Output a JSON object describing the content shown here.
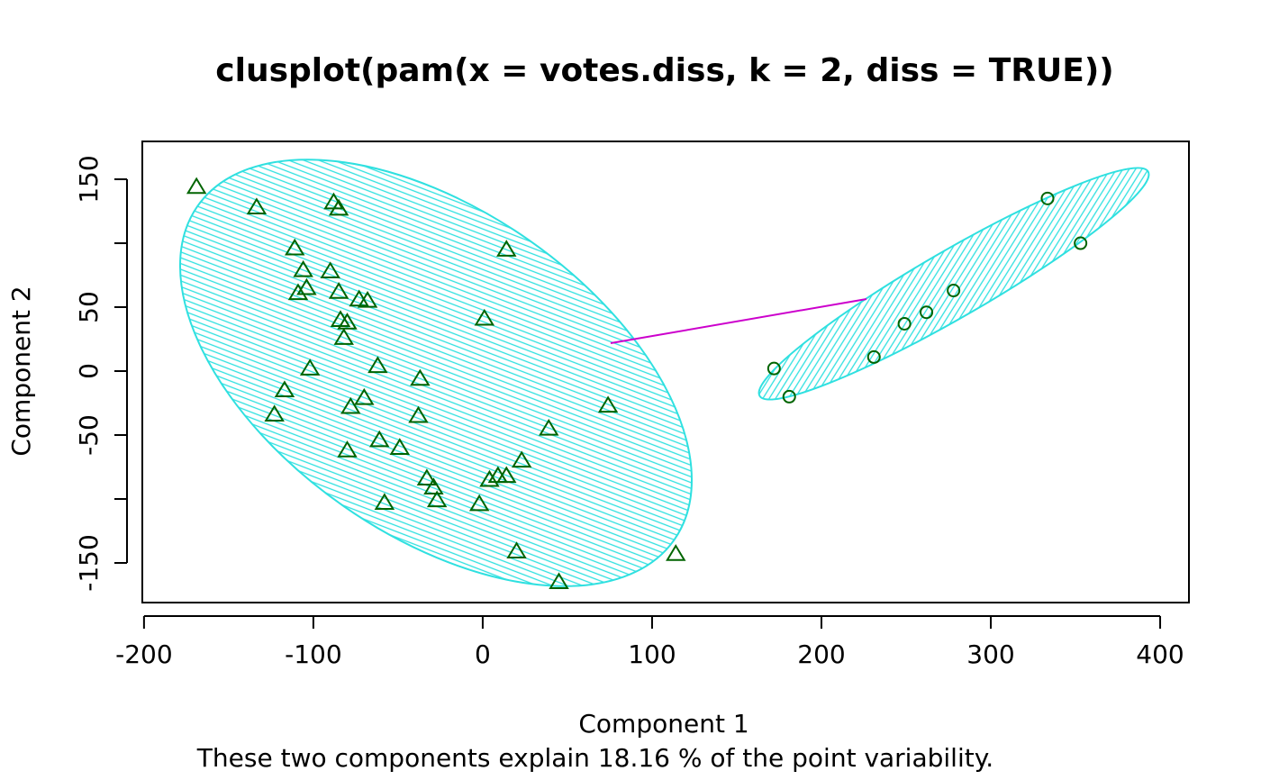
{
  "chart_data": {
    "type": "scatter",
    "title": "clusplot(pam(x = votes.diss, k = 2, diss = TRUE))",
    "xlabel": "Component 1",
    "ylabel": "Component 2",
    "subtitle": "These two components explain 18.16 % of the point variability.",
    "xlim": [
      -201,
      417
    ],
    "ylim": [
      -181,
      179.6
    ],
    "xticks": [
      -200,
      -100,
      0,
      100,
      200,
      300,
      400
    ],
    "yticks": [
      -150,
      -100,
      -50,
      0,
      50,
      100,
      150
    ],
    "series": [
      {
        "marker": "triangle",
        "color": "#006400",
        "x": [
          -169,
          -133.5,
          -88,
          -85,
          -111,
          -106,
          -90,
          -104,
          -109,
          -85,
          -73,
          -68,
          14,
          1,
          -84,
          -80,
          -82,
          -102,
          -62,
          -37,
          -117,
          -70,
          -78,
          -123,
          -38,
          74,
          39,
          -61,
          -49,
          -80,
          23,
          14,
          9,
          4,
          -33,
          -29,
          -27,
          -58,
          -2,
          20,
          114,
          45
        ],
        "values": [
          144,
          128,
          132,
          127,
          96,
          79,
          78,
          65,
          61,
          62,
          56,
          55,
          95,
          41,
          40,
          38,
          26,
          2,
          4,
          -6,
          -15,
          -21,
          -28,
          -34,
          -35,
          -27,
          -45,
          -54,
          -60,
          -62,
          -70,
          -82,
          -82,
          -85,
          -84,
          -91,
          -101,
          -103,
          -104,
          -141,
          -143,
          -165
        ]
      },
      {
        "marker": "circle",
        "color": "#006400",
        "x": [
          333.5,
          353,
          278,
          262,
          249,
          231,
          172,
          181
        ],
        "values": [
          135,
          100,
          63,
          46,
          37,
          11,
          2,
          -20
        ]
      }
    ]
  }
}
